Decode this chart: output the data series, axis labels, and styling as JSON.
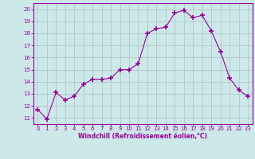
{
  "x": [
    0,
    1,
    2,
    3,
    4,
    5,
    6,
    7,
    8,
    9,
    10,
    11,
    12,
    13,
    14,
    15,
    16,
    17,
    18,
    19,
    20,
    21,
    22,
    23
  ],
  "y": [
    11.7,
    10.9,
    13.1,
    12.5,
    12.8,
    13.8,
    14.2,
    14.2,
    14.3,
    15.0,
    15.0,
    15.5,
    18.0,
    18.4,
    18.5,
    19.7,
    19.9,
    19.3,
    19.5,
    18.2,
    16.5,
    14.3,
    13.3,
    12.8
  ],
  "line_color": "#990099",
  "marker": "+",
  "marker_size": 4,
  "bg_color": "#cce8e8",
  "grid_color": "#b0c8c8",
  "xlabel": "Windchill (Refroidissement éolien,°C)",
  "xlabel_color": "#990099",
  "tick_color": "#990099",
  "spine_color": "#990099",
  "ylim": [
    10.5,
    20.5
  ],
  "xlim": [
    -0.5,
    23.5
  ],
  "yticks": [
    11,
    12,
    13,
    14,
    15,
    16,
    17,
    18,
    19,
    20
  ],
  "xticks": [
    0,
    1,
    2,
    3,
    4,
    5,
    6,
    7,
    8,
    9,
    10,
    11,
    12,
    13,
    14,
    15,
    16,
    17,
    18,
    19,
    20,
    21,
    22,
    23
  ],
  "tick_fontsize": 5,
  "xlabel_fontsize": 5.5
}
